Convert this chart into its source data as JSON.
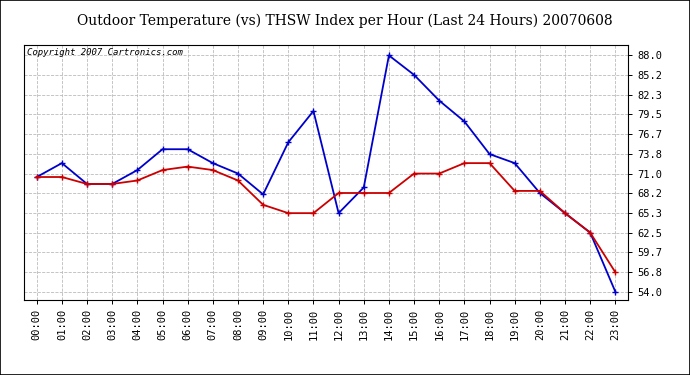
{
  "title": "Outdoor Temperature (vs) THSW Index per Hour (Last 24 Hours) 20070608",
  "copyright": "Copyright 2007 Cartronics.com",
  "hours": [
    "00:00",
    "01:00",
    "02:00",
    "03:00",
    "04:00",
    "05:00",
    "06:00",
    "07:00",
    "08:00",
    "09:00",
    "10:00",
    "11:00",
    "12:00",
    "13:00",
    "14:00",
    "15:00",
    "16:00",
    "17:00",
    "18:00",
    "19:00",
    "20:00",
    "21:00",
    "22:00",
    "23:00"
  ],
  "temp": [
    70.5,
    70.5,
    69.5,
    69.5,
    70.0,
    71.5,
    72.0,
    71.5,
    70.0,
    66.5,
    65.3,
    65.3,
    68.2,
    68.2,
    68.2,
    71.0,
    71.0,
    72.5,
    72.5,
    68.5,
    68.5,
    65.3,
    62.5,
    56.8
  ],
  "thsw": [
    70.5,
    72.5,
    69.5,
    69.5,
    71.5,
    74.5,
    74.5,
    72.5,
    71.0,
    68.0,
    75.5,
    80.0,
    65.3,
    69.0,
    88.0,
    85.2,
    81.5,
    78.5,
    73.8,
    72.5,
    68.2,
    65.3,
    62.5,
    54.0
  ],
  "temp_color": "#cc0000",
  "thsw_color": "#0000cc",
  "bg_color": "#ffffff",
  "grid_color": "#bbbbbb",
  "yticks": [
    54.0,
    56.8,
    59.7,
    62.5,
    65.3,
    68.2,
    71.0,
    73.8,
    76.7,
    79.5,
    82.3,
    85.2,
    88.0
  ],
  "ylim": [
    52.8,
    89.5
  ],
  "title_fontsize": 10,
  "copyright_fontsize": 6.5,
  "tick_fontsize": 7.5,
  "marker_size": 5,
  "line_width": 1.3
}
